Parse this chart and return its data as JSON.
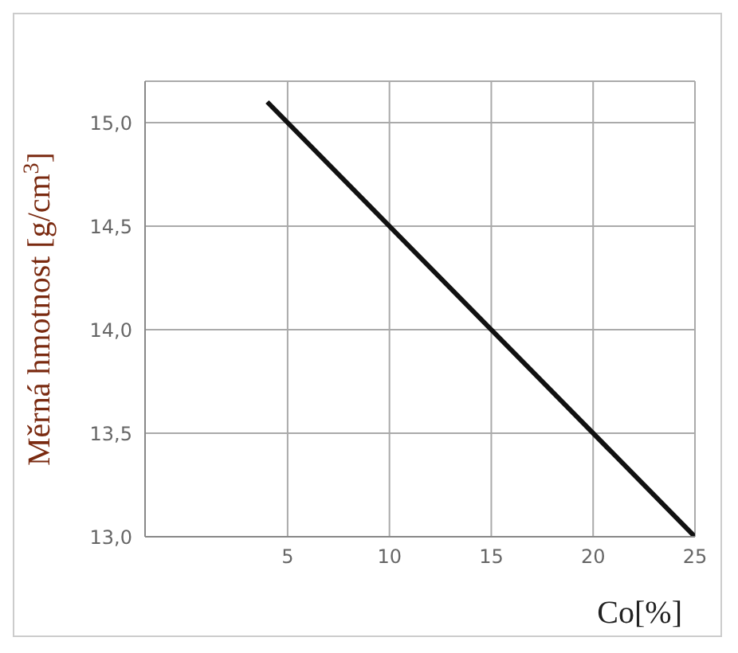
{
  "chart_data": {
    "type": "line",
    "xlabel": "Co[%]",
    "ylabel": "Měrná hmotnost [g/cm$^{3}$]",
    "x": [
      4,
      25
    ],
    "series": [
      {
        "color": "#111111",
        "values": [
          15.1,
          13.0
        ]
      }
    ],
    "xlim": [
      -2,
      25
    ],
    "xticks": [
      5,
      10,
      15,
      20,
      25
    ],
    "ylim": [
      13,
      15.2
    ],
    "yticks": [
      {
        "value": 13,
        "label": "13,0"
      },
      {
        "value": 13.5,
        "label": "13,5"
      },
      {
        "value": 14,
        "label": "14,0"
      },
      {
        "value": 14.5,
        "label": "14,5"
      },
      {
        "value": 15,
        "label": "15,0"
      }
    ],
    "grid": true,
    "marker": "none",
    "line_style": "solid",
    "legend": false
  }
}
